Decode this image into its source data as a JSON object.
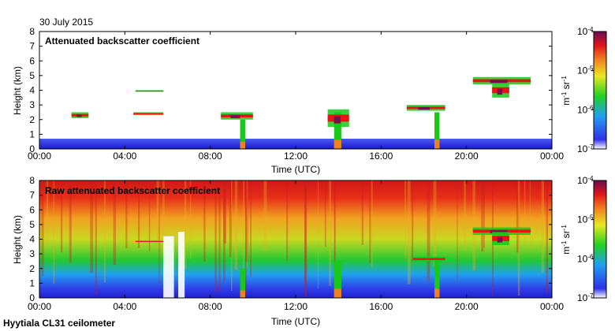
{
  "date_label": "30 July 2015",
  "footer_label": "Hyytiala CL31 ceilometer",
  "colors": {
    "clear": "#ffffff",
    "low": "#2a2ae0",
    "mid": "#19c819",
    "high": "#e61414",
    "peak": "#7a0a4a"
  },
  "chart_data": [
    {
      "type": "heatmap",
      "title": "Attenuated backscatter coefficient",
      "xlabel": "Time (UTC)",
      "ylabel": "Height (km)",
      "xlim": [
        0,
        24
      ],
      "ylim": [
        0,
        8
      ],
      "x_ticks": [
        0,
        4,
        8,
        12,
        16,
        20,
        24
      ],
      "x_tick_labels": [
        "00:00",
        "04:00",
        "08:00",
        "12:00",
        "16:00",
        "20:00",
        "00:00"
      ],
      "y_ticks": [
        0,
        1,
        2,
        3,
        4,
        5,
        6,
        7,
        8
      ],
      "y_tick_labels": [
        "0",
        "1",
        "2",
        "3",
        "4",
        "5",
        "6",
        "7",
        "8"
      ],
      "colorbar": {
        "scale": "log",
        "range": [
          1e-07,
          0.0001
        ],
        "tick_labels": [
          "10-4",
          "10-5",
          "10-6",
          "10-7"
        ],
        "unit": "m-1 sr-1"
      },
      "features": [
        {
          "kind": "boundary_layer",
          "x": [
            0,
            24
          ],
          "y": [
            0,
            0.7
          ]
        },
        {
          "kind": "cloud_layer",
          "x": [
            1.5,
            2.3
          ],
          "y": [
            2.1,
            2.5
          ]
        },
        {
          "kind": "cloud_layer",
          "x": [
            4.4,
            5.8
          ],
          "y": [
            2.3,
            2.5
          ]
        },
        {
          "kind": "cloud_layer",
          "x": [
            4.5,
            5.8
          ],
          "y": [
            3.9,
            4.0
          ]
        },
        {
          "kind": "cloud_layer",
          "x": [
            8.5,
            10.0
          ],
          "y": [
            2.0,
            2.5
          ]
        },
        {
          "kind": "precip_column",
          "x": [
            9.4,
            9.6
          ],
          "y": [
            0,
            2.0
          ]
        },
        {
          "kind": "precip_column",
          "x": [
            13.8,
            14.1
          ],
          "y": [
            0,
            2.5
          ]
        },
        {
          "kind": "cloud_layer",
          "x": [
            13.5,
            14.5
          ],
          "y": [
            1.5,
            2.7
          ]
        },
        {
          "kind": "cloud_layer",
          "x": [
            17.2,
            19.0
          ],
          "y": [
            2.6,
            3.0
          ]
        },
        {
          "kind": "precip_column",
          "x": [
            18.5,
            18.7
          ],
          "y": [
            0,
            2.5
          ]
        },
        {
          "kind": "cloud_layer",
          "x": [
            20.3,
            23.0
          ],
          "y": [
            4.4,
            4.9
          ]
        },
        {
          "kind": "cloud_layer",
          "x": [
            21.2,
            22.0
          ],
          "y": [
            3.5,
            4.5
          ]
        }
      ]
    },
    {
      "type": "heatmap",
      "title": "Raw attenuated backscatter coefficient",
      "xlabel": "Time (UTC)",
      "ylabel": "Height (km)",
      "xlim": [
        0,
        24
      ],
      "ylim": [
        0,
        8
      ],
      "x_ticks": [
        0,
        4,
        8,
        12,
        16,
        20,
        24
      ],
      "x_tick_labels": [
        "00:00",
        "04:00",
        "08:00",
        "12:00",
        "16:00",
        "20:00",
        "00:00"
      ],
      "y_ticks": [
        0,
        1,
        2,
        3,
        4,
        5,
        6,
        7,
        8
      ],
      "y_tick_labels": [
        "0",
        "1",
        "2",
        "3",
        "4",
        "5",
        "6",
        "7",
        "8"
      ],
      "colorbar": {
        "scale": "log",
        "range": [
          1e-07,
          0.0001
        ],
        "tick_labels": [
          "10-4",
          "10-5",
          "10-6",
          "10-7"
        ],
        "unit": "m-1 sr-1"
      },
      "features": [
        {
          "kind": "noise_gradient",
          "x": [
            0,
            24
          ],
          "y": [
            0,
            8
          ]
        },
        {
          "kind": "white_gap",
          "x": [
            5.8,
            6.3
          ],
          "y": [
            0,
            4.2
          ]
        },
        {
          "kind": "white_gap",
          "x": [
            6.5,
            6.8
          ],
          "y": [
            0,
            4.5
          ]
        },
        {
          "kind": "cloud_layer",
          "x": [
            4.5,
            5.8
          ],
          "y": [
            3.8,
            3.9
          ]
        },
        {
          "kind": "precip_column",
          "x": [
            9.4,
            9.6
          ],
          "y": [
            0,
            2.0
          ]
        },
        {
          "kind": "precip_column",
          "x": [
            13.8,
            14.1
          ],
          "y": [
            0,
            2.5
          ]
        },
        {
          "kind": "precip_column",
          "x": [
            18.5,
            18.7
          ],
          "y": [
            0,
            2.5
          ]
        },
        {
          "kind": "cloud_layer",
          "x": [
            17.5,
            19.0
          ],
          "y": [
            2.5,
            2.8
          ]
        },
        {
          "kind": "cloud_layer",
          "x": [
            20.3,
            23.0
          ],
          "y": [
            4.3,
            4.8
          ]
        },
        {
          "kind": "cloud_layer",
          "x": [
            21.2,
            22.0
          ],
          "y": [
            3.6,
            4.5
          ]
        }
      ]
    }
  ]
}
